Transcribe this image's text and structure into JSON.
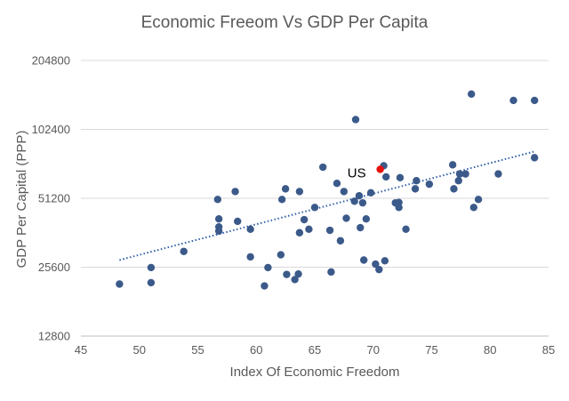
{
  "chart_data": {
    "type": "scatter",
    "title": "Economic Freeom Vs GDP Per Capita",
    "xlabel": "Index Of Economic Freedom",
    "ylabel": "GDP Per Capital (PPP)",
    "xlim": [
      45,
      85
    ],
    "x_ticks": [
      45,
      50,
      55,
      60,
      65,
      70,
      75,
      80,
      85
    ],
    "ylim": [
      12800,
      204800
    ],
    "y_scale": "log2",
    "y_ticks": [
      12800,
      25600,
      51200,
      102400,
      204800
    ],
    "grid": "horizontal",
    "colors": {
      "points": "#3b5a8a",
      "highlight": "#e8120c",
      "trendline": "#2e5fa8",
      "grid": "#d9d9d9"
    },
    "highlight": {
      "label": "US",
      "x": 70.6,
      "y": 68500
    },
    "trendline": {
      "style": "dotted",
      "x": [
        48.3,
        83.8
      ],
      "y": [
        27500,
        82000
      ]
    },
    "points": [
      {
        "x": 48.3,
        "y": 21600
      },
      {
        "x": 51.0,
        "y": 21900
      },
      {
        "x": 51.0,
        "y": 25500
      },
      {
        "x": 53.8,
        "y": 30000
      },
      {
        "x": 56.7,
        "y": 50600
      },
      {
        "x": 56.8,
        "y": 41600
      },
      {
        "x": 56.8,
        "y": 38400
      },
      {
        "x": 56.8,
        "y": 36800
      },
      {
        "x": 58.2,
        "y": 54800
      },
      {
        "x": 58.4,
        "y": 40600
      },
      {
        "x": 59.5,
        "y": 37500
      },
      {
        "x": 59.5,
        "y": 28400
      },
      {
        "x": 60.7,
        "y": 21200
      },
      {
        "x": 61.0,
        "y": 25500
      },
      {
        "x": 62.1,
        "y": 29000
      },
      {
        "x": 62.2,
        "y": 50600
      },
      {
        "x": 62.5,
        "y": 56300
      },
      {
        "x": 62.6,
        "y": 23800
      },
      {
        "x": 63.3,
        "y": 22600
      },
      {
        "x": 63.6,
        "y": 23900
      },
      {
        "x": 63.7,
        "y": 54800
      },
      {
        "x": 63.7,
        "y": 36200
      },
      {
        "x": 64.1,
        "y": 41300
      },
      {
        "x": 64.5,
        "y": 37500
      },
      {
        "x": 65.0,
        "y": 46700
      },
      {
        "x": 65.7,
        "y": 70000
      },
      {
        "x": 66.3,
        "y": 37100
      },
      {
        "x": 66.4,
        "y": 24400
      },
      {
        "x": 66.9,
        "y": 59500
      },
      {
        "x": 67.2,
        "y": 33400
      },
      {
        "x": 67.5,
        "y": 54800
      },
      {
        "x": 67.7,
        "y": 41900
      },
      {
        "x": 68.4,
        "y": 49700
      },
      {
        "x": 68.5,
        "y": 113000
      },
      {
        "x": 68.8,
        "y": 52500
      },
      {
        "x": 68.9,
        "y": 38100
      },
      {
        "x": 69.1,
        "y": 48900
      },
      {
        "x": 69.2,
        "y": 27500
      },
      {
        "x": 69.4,
        "y": 41600
      },
      {
        "x": 69.8,
        "y": 54100
      },
      {
        "x": 70.2,
        "y": 26400
      },
      {
        "x": 70.5,
        "y": 25000
      },
      {
        "x": 70.9,
        "y": 71000
      },
      {
        "x": 71.0,
        "y": 27300
      },
      {
        "x": 71.1,
        "y": 63500
      },
      {
        "x": 71.9,
        "y": 48900
      },
      {
        "x": 72.2,
        "y": 46700
      },
      {
        "x": 72.2,
        "y": 49100
      },
      {
        "x": 72.3,
        "y": 63000
      },
      {
        "x": 72.8,
        "y": 37500
      },
      {
        "x": 73.6,
        "y": 56300
      },
      {
        "x": 73.7,
        "y": 61100
      },
      {
        "x": 74.8,
        "y": 59000
      },
      {
        "x": 76.8,
        "y": 71700
      },
      {
        "x": 76.9,
        "y": 56300
      },
      {
        "x": 77.3,
        "y": 61100
      },
      {
        "x": 77.4,
        "y": 65400
      },
      {
        "x": 77.9,
        "y": 65400
      },
      {
        "x": 78.4,
        "y": 146000
      },
      {
        "x": 78.6,
        "y": 46700
      },
      {
        "x": 79.0,
        "y": 50600
      },
      {
        "x": 80.7,
        "y": 65400
      },
      {
        "x": 82.0,
        "y": 137000
      },
      {
        "x": 83.8,
        "y": 137000
      },
      {
        "x": 83.8,
        "y": 77000
      }
    ]
  }
}
